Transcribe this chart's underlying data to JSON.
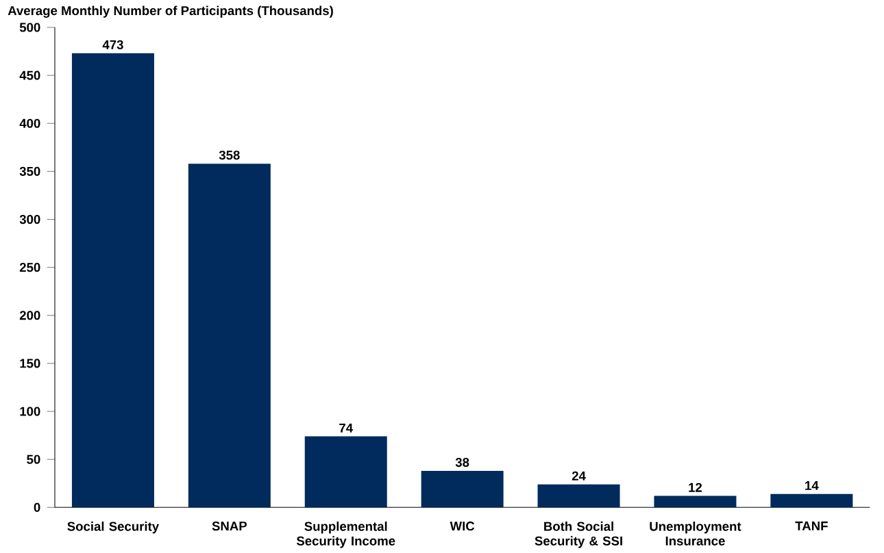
{
  "chart_data": {
    "type": "bar",
    "title": "Average Monthly Number of Participants (Thousands)",
    "categories": [
      "Social Security",
      "SNAP",
      "Supplemental Security Income",
      "WIC",
      "Both Social Security & SSI",
      "Unemployment Insurance",
      "TANF"
    ],
    "values": [
      473,
      358,
      74,
      38,
      24,
      12,
      14
    ],
    "color": "#002b5c",
    "ylim": [
      0,
      500
    ],
    "yticks": [
      0,
      50,
      100,
      150,
      200,
      250,
      300,
      350,
      400,
      450,
      500
    ],
    "data_labels": true,
    "grid": false
  }
}
